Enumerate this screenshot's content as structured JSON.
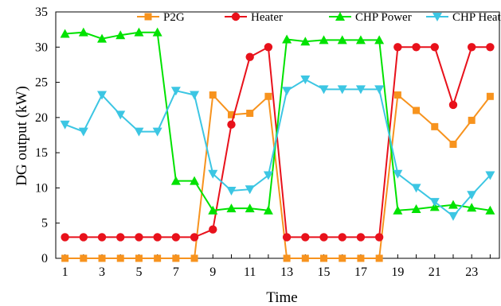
{
  "chart_data": {
    "type": "line",
    "title": "",
    "xlabel": "Time",
    "ylabel": "DG output (kW)",
    "xlim": [
      0.5,
      24.5
    ],
    "ylim": [
      0,
      35
    ],
    "x_ticks": [
      1,
      3,
      5,
      7,
      9,
      11,
      13,
      15,
      17,
      19,
      21,
      23
    ],
    "y_ticks": [
      0,
      5,
      10,
      15,
      20,
      25,
      30,
      35
    ],
    "grid": false,
    "legend_position": "top",
    "x": [
      1,
      2,
      3,
      4,
      5,
      6,
      7,
      8,
      9,
      10,
      11,
      12,
      13,
      14,
      15,
      16,
      17,
      18,
      19,
      20,
      21,
      22,
      23,
      24
    ],
    "series": [
      {
        "name": "P2G",
        "color": "#F7931E",
        "marker": "square",
        "values": [
          0,
          0,
          0,
          0,
          0,
          0,
          0,
          0,
          23.2,
          20.4,
          20.6,
          23.0,
          0,
          0,
          0,
          0,
          0,
          0,
          23.2,
          21.0,
          18.7,
          16.2,
          19.6,
          23.0
        ]
      },
      {
        "name": "Heater",
        "color": "#E8111B",
        "marker": "circle",
        "values": [
          3,
          3,
          3,
          3,
          3,
          3,
          3,
          3,
          4.1,
          19.0,
          28.6,
          30.0,
          3,
          3,
          3,
          3,
          3,
          3,
          30.0,
          30.0,
          30.0,
          21.8,
          30.0,
          30.0
        ]
      },
      {
        "name": "CHP Power",
        "color": "#00E200",
        "marker": "triangle-up",
        "values": [
          31.9,
          32.1,
          31.2,
          31.7,
          32.1,
          32.1,
          11.0,
          11.0,
          6.8,
          7.1,
          7.1,
          6.8,
          31.1,
          30.8,
          31.0,
          31.0,
          31.0,
          31.0,
          6.8,
          7.0,
          7.3,
          7.6,
          7.2,
          6.8
        ]
      },
      {
        "name": "CHP Heat",
        "color": "#3CC6E3",
        "marker": "triangle-down",
        "values": [
          19.0,
          18.0,
          23.2,
          20.4,
          18.0,
          18.0,
          23.8,
          23.2,
          12.0,
          9.6,
          9.8,
          11.8,
          23.8,
          25.4,
          24.0,
          24.0,
          24.0,
          24.0,
          12.0,
          10.0,
          8.0,
          6.0,
          9.0,
          11.8
        ]
      }
    ]
  }
}
